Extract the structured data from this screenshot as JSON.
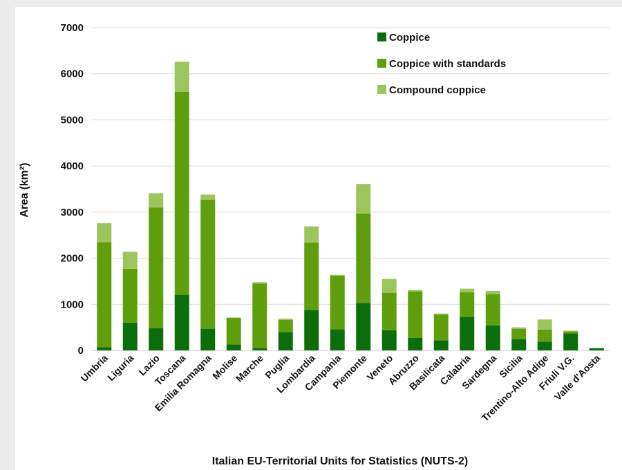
{
  "chart_data": {
    "type": "bar",
    "stacked": true,
    "xlabel": "Italian EU-Territorial Units for Statistics (NUTS-2)",
    "ylabel": "Area (km²)",
    "ylim": [
      0,
      7000
    ],
    "yticks": [
      0,
      1000,
      2000,
      3000,
      4000,
      5000,
      6000,
      7000
    ],
    "grid": true,
    "legend_position": "top-right",
    "categories": [
      "Umbria",
      "Liguria",
      "Lazio",
      "Toscana",
      "Emilia Romagna",
      "Molise",
      "Marche",
      "Puglia",
      "Lombardia",
      "Campania",
      "Piemonte",
      "Veneto",
      "Abruzzo",
      "Basilicata",
      "Calabria",
      "Sardegna",
      "Sicilia",
      "Trentino-Alto Adige",
      "Friuli V.G.",
      "Valle d'Aosta"
    ],
    "series": [
      {
        "name": "Coppice",
        "color": "#0b6e0b",
        "values": [
          70,
          600,
          480,
          1210,
          470,
          130,
          50,
          400,
          880,
          460,
          1030,
          440,
          270,
          220,
          730,
          540,
          240,
          190,
          370,
          50
        ]
      },
      {
        "name": "Coppice with standards",
        "color": "#5f9e0d",
        "values": [
          2280,
          1170,
          2620,
          4400,
          2800,
          580,
          1400,
          260,
          1460,
          1160,
          1940,
          810,
          1010,
          560,
          530,
          680,
          230,
          260,
          40,
          0
        ]
      },
      {
        "name": "Compound coppice",
        "color": "#9dc45d",
        "values": [
          410,
          370,
          310,
          650,
          110,
          0,
          30,
          30,
          350,
          20,
          640,
          300,
          30,
          20,
          80,
          70,
          30,
          220,
          20,
          0
        ]
      }
    ]
  }
}
